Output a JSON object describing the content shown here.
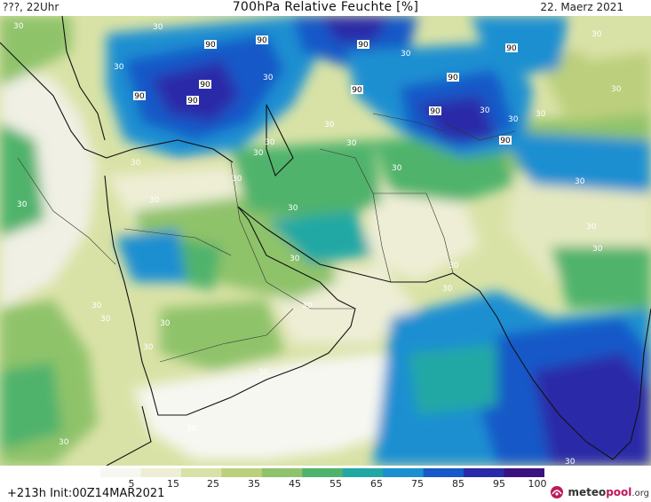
{
  "header": {
    "left": "???, 22Uhr",
    "title": "700hPa Relative Feuchte [%]",
    "date": "22. Maerz 2021"
  },
  "map": {
    "contour_labels": [
      "90",
      "90",
      "90",
      "90",
      "90",
      "90",
      "90",
      "90",
      "90",
      "90",
      "90",
      "30",
      "30",
      "30",
      "30",
      "30",
      "30",
      "30",
      "30",
      "30",
      "30",
      "30",
      "30",
      "30",
      "30",
      "30",
      "30",
      "30",
      "30",
      "30",
      "30",
      "30",
      "30",
      "30",
      "30",
      "30",
      "30",
      "30",
      "30",
      "30",
      "30",
      "30",
      "30",
      "30",
      "30",
      "30"
    ]
  },
  "colorbar": {
    "ticks": [
      "5",
      "15",
      "25",
      "35",
      "45",
      "55",
      "65",
      "75",
      "85",
      "95",
      "100"
    ],
    "colors": [
      "#f7f7f2",
      "#eeeed6",
      "#d9e2a6",
      "#bccf7d",
      "#8fc36b",
      "#4fb36c",
      "#22a8a4",
      "#1a8fd1",
      "#1659c8",
      "#2a2aa8",
      "#3a1280"
    ]
  },
  "footer": {
    "run_info": "+213h  Init:00Z14MAR2021",
    "logo_main": "meteo",
    "logo_accent": "pool",
    "logo_suffix": ".org"
  }
}
